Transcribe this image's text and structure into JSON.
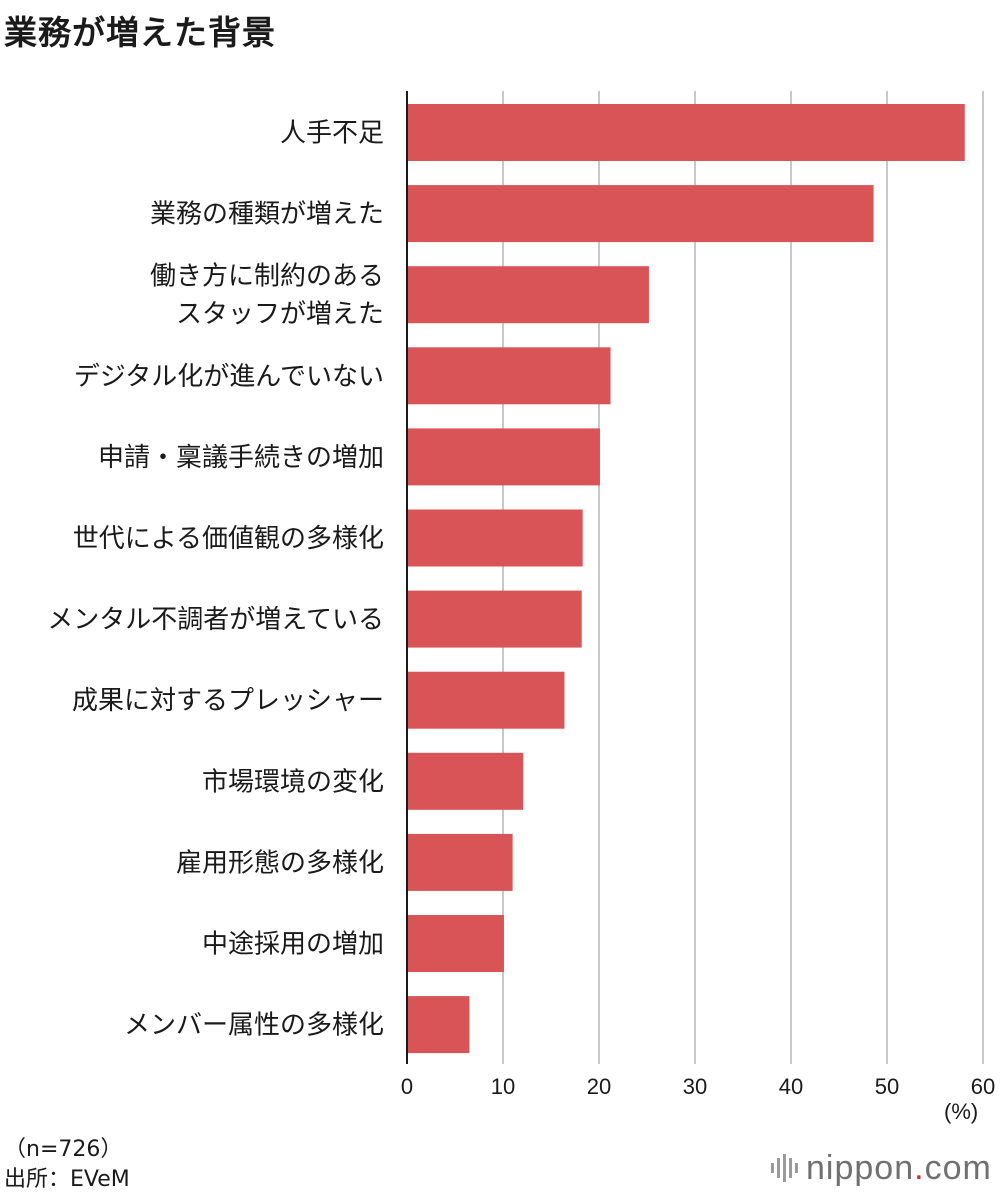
{
  "chart_data": {
    "type": "bar",
    "orientation": "horizontal",
    "title": "業務が増えた背景",
    "categories": [
      "人手不足",
      "業務の種類が増えた",
      "働き方に制約のある\nスタッフが増えた",
      "デジタル化が進んでいない",
      "申請・稟議手続きの増加",
      "世代による価値観の多様化",
      "メンタル不調者が増えている",
      "成果に対するプレッシャー",
      "市場環境の変化",
      "雇用形態の多様化",
      "中途採用の増加",
      "メンバー属性の多様化"
    ],
    "values": [
      58.1,
      48.6,
      25.2,
      21.2,
      20.1,
      18.3,
      18.2,
      16.4,
      12.1,
      11.0,
      10.1,
      6.5
    ],
    "xlim": [
      0,
      60
    ],
    "xticks": [
      0,
      10,
      20,
      30,
      40,
      50,
      60
    ],
    "xunit": "(%)",
    "grid": true,
    "bar_color": "#d95457",
    "note": "（n=726）",
    "source": "出所：EVeM"
  },
  "brand": {
    "name": "nippon",
    "dot": ".",
    "suffix": "com",
    "accent": "#d9262b"
  }
}
